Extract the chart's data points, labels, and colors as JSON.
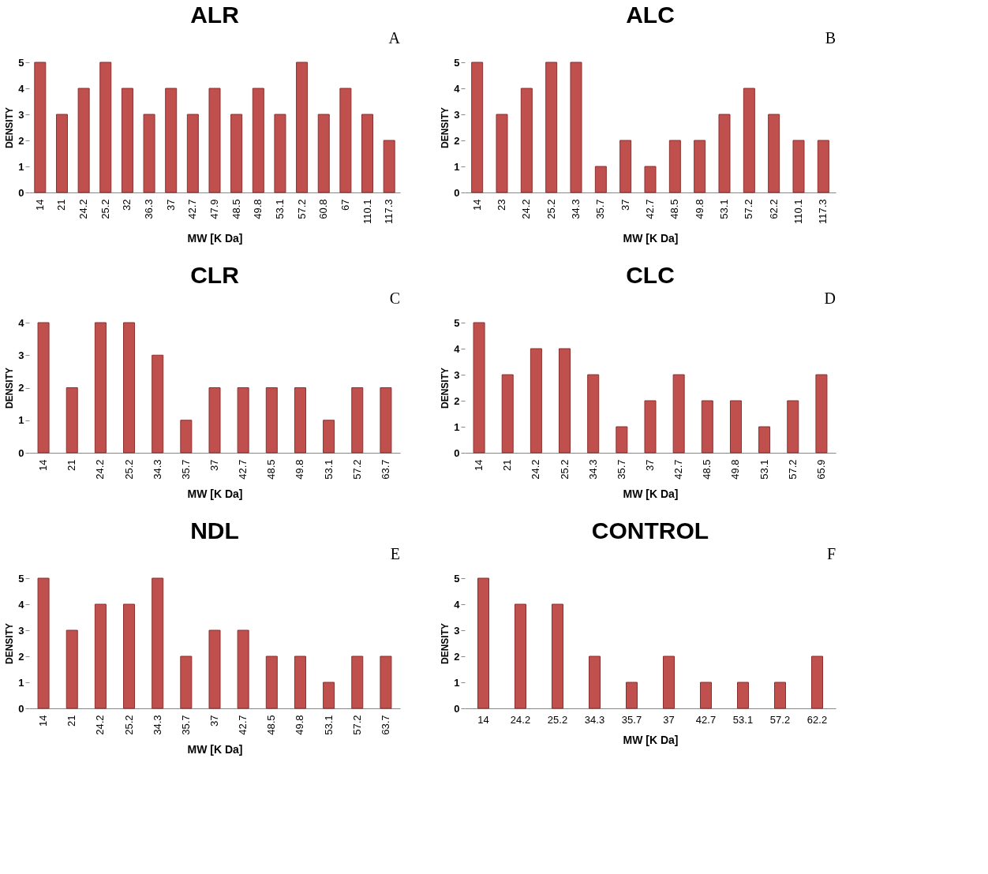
{
  "chart_data": [
    {
      "type": "bar",
      "title": "ALR",
      "annotations": [
        "A"
      ],
      "xlabel": "MW [K Da]",
      "ylabel": "DENSITY",
      "categories": [
        "14",
        "21",
        "24.2",
        "25.2",
        "32",
        "36.3",
        "37",
        "42.7",
        "47.9",
        "48.5",
        "49.8",
        "53.1",
        "57.2",
        "60.8",
        "67",
        "110.1",
        "117.3"
      ],
      "values": [
        5,
        3,
        4,
        5,
        4,
        3,
        4,
        3,
        4,
        3,
        4,
        3,
        5,
        3,
        4,
        3,
        2
      ],
      "color": "#c0504d",
      "ylim": [
        0,
        5
      ],
      "yticks": [
        0,
        1,
        2,
        3,
        4,
        5
      ],
      "grid": false
    },
    {
      "type": "bar",
      "title": "ALC",
      "annotations": [
        "B"
      ],
      "xlabel": "MW [K Da]",
      "ylabel": "DENSITY",
      "categories": [
        "14",
        "23",
        "24.2",
        "25.2",
        "34.3",
        "35.7",
        "37",
        "42.7",
        "48.5",
        "49.8",
        "53.1",
        "57.2",
        "62.2",
        "110.1",
        "117.3"
      ],
      "values": [
        5,
        3,
        4,
        5,
        5,
        1,
        2,
        1,
        2,
        2,
        3,
        4,
        3,
        2,
        2
      ],
      "color": "#c0504d",
      "ylim": [
        0,
        5
      ],
      "yticks": [
        0,
        1,
        2,
        3,
        4,
        5
      ],
      "grid": false
    },
    {
      "type": "bar",
      "title": "CLR",
      "annotations": [
        "C"
      ],
      "xlabel": "MW [K Da]",
      "ylabel": "DENSITY",
      "categories": [
        "14",
        "21",
        "24.2",
        "25.2",
        "34.3",
        "35.7",
        "37",
        "42.7",
        "48.5",
        "49.8",
        "53.1",
        "57.2",
        "63.7"
      ],
      "values": [
        4,
        2,
        4,
        4,
        3,
        1,
        2,
        2,
        2,
        2,
        1,
        2,
        2
      ],
      "color": "#c0504d",
      "ylim": [
        0,
        4
      ],
      "yticks": [
        0,
        1,
        2,
        3,
        4
      ],
      "grid": false
    },
    {
      "type": "bar",
      "title": "CLC",
      "annotations": [
        "D"
      ],
      "xlabel": "MW [K Da]",
      "ylabel": "DENSITY",
      "categories": [
        "14",
        "21",
        "24.2",
        "25.2",
        "34.3",
        "35.7",
        "37",
        "42.7",
        "48.5",
        "49.8",
        "53.1",
        "57.2",
        "65.9"
      ],
      "values": [
        5,
        3,
        4,
        4,
        3,
        1,
        2,
        3,
        2,
        2,
        1,
        2,
        3
      ],
      "color": "#c0504d",
      "ylim": [
        0,
        5
      ],
      "yticks": [
        0,
        1,
        2,
        3,
        4,
        5
      ],
      "grid": false
    },
    {
      "type": "bar",
      "title": "NDL",
      "annotations": [
        "E"
      ],
      "xlabel": "MW [K Da]",
      "ylabel": "DENSITY",
      "categories": [
        "14",
        "21",
        "24.2",
        "25.2",
        "34.3",
        "35.7",
        "37",
        "42.7",
        "48.5",
        "49.8",
        "53.1",
        "57.2",
        "63.7"
      ],
      "values": [
        5,
        3,
        4,
        4,
        5,
        2,
        3,
        3,
        2,
        2,
        1,
        2,
        2
      ],
      "color": "#c0504d",
      "ylim": [
        0,
        5
      ],
      "yticks": [
        0,
        1,
        2,
        3,
        4,
        5
      ],
      "grid": false
    },
    {
      "type": "bar",
      "title": "CONTROL",
      "annotations": [
        "F"
      ],
      "xlabel": "MW [K Da]",
      "ylabel": "DENSITY",
      "categories": [
        "14",
        "24.2",
        "25.2",
        "34.3",
        "35.7",
        "37",
        "42.7",
        "53.1",
        "57.2",
        "62.2"
      ],
      "values": [
        5,
        4,
        4,
        2,
        1,
        2,
        1,
        1,
        1,
        2
      ],
      "color": "#c0504d",
      "ylim": [
        0,
        5
      ],
      "yticks": [
        0,
        1,
        2,
        3,
        4,
        5
      ],
      "grid": false
    }
  ]
}
